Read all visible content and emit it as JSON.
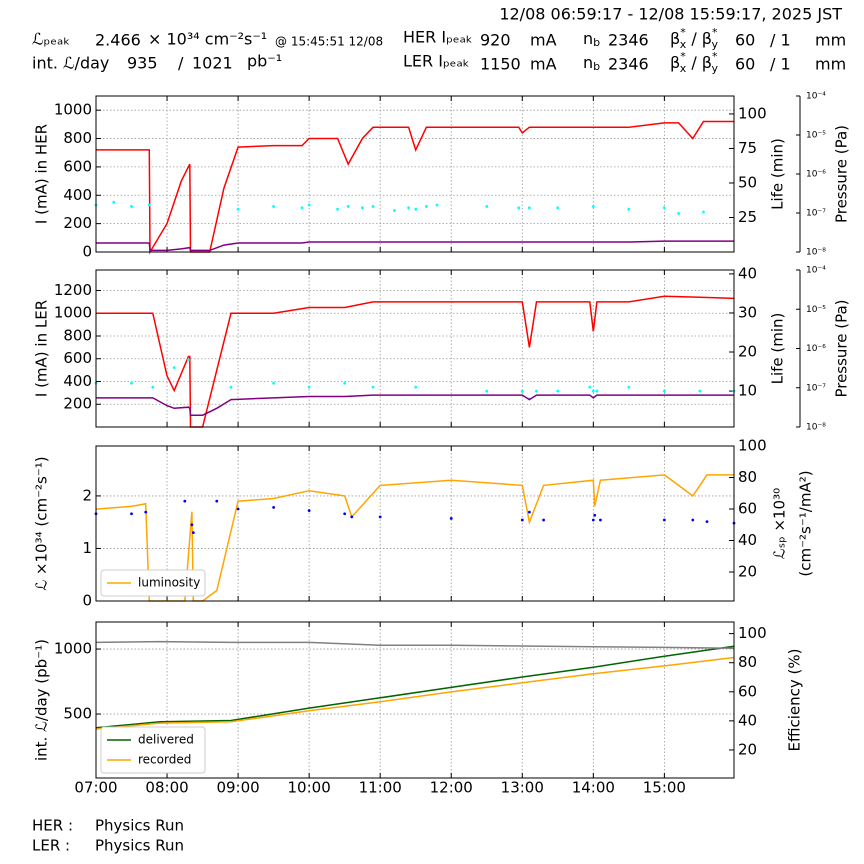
{
  "header": {
    "time_range": "12/08 06:59:17 - 12/08 15:59:17, 2025 JST",
    "lpeak_label": "ℒₚₑₐₖ",
    "lpeak_value": 2.466,
    "lpeak_unit": "× 10³⁴ cm⁻²s⁻¹",
    "lpeak_time": "@ 15:45:51 12/08",
    "int_label": "int. ℒ/day",
    "int_recorded": 935,
    "int_sep": "/",
    "int_delivered": 1021,
    "int_unit": "pb⁻¹",
    "nb": {
      "symbol": "n",
      "sub": "b"
    },
    "beta": {
      "symbol": "β",
      "sup": "*",
      "sub_x": "x",
      "sep": " / ",
      "sub_y": "y"
    },
    "her": {
      "label": "HER Iₚₑₐₖ",
      "current": 920,
      "unit": "mA",
      "nb_value": 2346,
      "beta_x": 60,
      "beta_y": "/ 1",
      "beta_unit": "mm"
    },
    "ler": {
      "label": "LER Iₚₑₐₖ",
      "current": 1150,
      "unit": "mA",
      "nb_value": 2346,
      "beta_x": 60,
      "beta_y": "/ 1",
      "beta_unit": "mm"
    }
  },
  "footer": [
    {
      "ring": "HER :",
      "status": "Physics Run"
    },
    {
      "ring": "LER :",
      "status": "Physics Run"
    }
  ],
  "chart_data": [
    {
      "type": "line",
      "grid": true,
      "x": [
        7.0,
        7.25,
        7.5,
        7.75,
        7.76,
        8.0,
        8.2,
        8.32,
        8.33,
        8.6,
        8.8,
        9.0,
        9.5,
        9.9,
        10.0,
        10.4,
        10.55,
        10.75,
        10.9,
        11.2,
        11.4,
        11.5,
        11.65,
        11.8,
        12.5,
        12.95,
        13.0,
        13.1,
        13.5,
        14.0,
        14.5,
        15.0,
        15.2,
        15.4,
        15.55,
        15.7,
        15.98
      ],
      "xlim": [
        7,
        15.98
      ],
      "xticks": [
        7,
        8,
        9,
        10,
        11,
        12,
        13,
        14,
        15
      ],
      "ylim": [
        0,
        1100
      ],
      "yticks": [
        0,
        200,
        400,
        600,
        800,
        1000
      ],
      "ylabel": "I (mA) in HER",
      "y2lim": [
        0,
        113
      ],
      "y2ticks": [
        25,
        50,
        75,
        100
      ],
      "y2label": "Life (min)",
      "y3lim": [
        1e-08,
        0.0001
      ],
      "y3scale": "log",
      "y3label": "Pressure (Pa)",
      "y3ticks": [
        {
          "value": 0.0001,
          "label": "10⁻⁴"
        },
        {
          "value": 1e-05,
          "label": "10⁻⁵"
        },
        {
          "value": 1e-06,
          "label": "10⁻⁶"
        },
        {
          "value": 1e-07,
          "label": "10⁻⁷"
        },
        {
          "value": 1e-08,
          "label": "10⁻⁸"
        }
      ],
      "series": [
        {
          "color": "#ff0000",
          "axis": "y",
          "mode": "line",
          "values": [
            720,
            720,
            720,
            720,
            0,
            200,
            500,
            620,
            0,
            0,
            450,
            740,
            750,
            750,
            800,
            800,
            620,
            800,
            880,
            880,
            880,
            720,
            880,
            880,
            880,
            880,
            840,
            880,
            880,
            880,
            880,
            910,
            910,
            800,
            920,
            920,
            920
          ]
        },
        {
          "color": "#00ffff",
          "axis": "y2",
          "mode": "markers",
          "values": [
            34,
            36,
            33,
            34,
            null,
            null,
            null,
            null,
            null,
            null,
            null,
            31,
            33,
            32,
            34,
            31,
            33,
            32,
            33,
            30,
            32,
            31,
            33,
            34,
            33,
            32,
            null,
            32,
            32,
            33,
            31,
            32,
            28,
            null,
            29,
            null,
            null
          ]
        },
        {
          "color": "#800080",
          "axis": "y3",
          "mode": "line",
          "values": [
            1.7e-08,
            1.7e-08,
            1.7e-08,
            1.7e-08,
            1.1e-08,
            1.1e-08,
            1.2e-08,
            1.3e-08,
            1.1e-08,
            1.1e-08,
            1.5e-08,
            1.7e-08,
            1.7e-08,
            1.7e-08,
            1.8e-08,
            1.8e-08,
            1.8e-08,
            1.8e-08,
            1.8e-08,
            1.8e-08,
            1.8e-08,
            1.8e-08,
            1.8e-08,
            1.8e-08,
            1.8e-08,
            1.8e-08,
            1.8e-08,
            1.8e-08,
            1.8e-08,
            1.8e-08,
            1.8e-08,
            1.9e-08,
            1.9e-08,
            1.9e-08,
            1.9e-08,
            1.9e-08,
            1.9e-08
          ]
        }
      ]
    },
    {
      "type": "line",
      "grid": true,
      "x": [
        7.0,
        7.5,
        7.8,
        8.0,
        8.1,
        8.3,
        8.32,
        8.33,
        8.5,
        8.7,
        8.9,
        9.5,
        10.0,
        10.5,
        10.9,
        11.5,
        12.5,
        13.0,
        13.1,
        13.2,
        13.5,
        13.95,
        14.0,
        14.05,
        14.5,
        15.0,
        15.5,
        15.98
      ],
      "xlim": [
        7,
        15.98
      ],
      "xticks": [
        7,
        8,
        9,
        10,
        11,
        12,
        13,
        14,
        15
      ],
      "ylim": [
        0,
        1380
      ],
      "yticks": [
        200,
        400,
        600,
        800,
        1000,
        1200
      ],
      "ylabel": "I (mA) in LER",
      "y2lim": [
        0.8,
        41
      ],
      "y2ticks": [
        10,
        20,
        30,
        40
      ],
      "y2label": "Life (min)",
      "y3lim": [
        1e-08,
        0.0001
      ],
      "y3scale": "log",
      "y3label": "Pressure (Pa)",
      "y3ticks": [
        {
          "value": 0.0001,
          "label": "10⁻⁴"
        },
        {
          "value": 1e-05,
          "label": "10⁻⁵"
        },
        {
          "value": 1e-06,
          "label": "10⁻⁶"
        },
        {
          "value": 1e-07,
          "label": "10⁻⁷"
        },
        {
          "value": 1e-08,
          "label": "10⁻⁸"
        }
      ],
      "series": [
        {
          "color": "#ff0000",
          "axis": "y",
          "mode": "line",
          "values": [
            1000,
            1000,
            1000,
            450,
            320,
            620,
            620,
            0,
            0,
            500,
            1000,
            1000,
            1050,
            1050,
            1100,
            1100,
            1100,
            1100,
            700,
            1100,
            1100,
            1100,
            840,
            1100,
            1100,
            1150,
            1140,
            1130
          ]
        },
        {
          "color": "#00ffff",
          "axis": "y2",
          "mode": "markers",
          "values": [
            12,
            12,
            11,
            null,
            16,
            18,
            null,
            null,
            null,
            null,
            11,
            12,
            11,
            12,
            11,
            11,
            10,
            10,
            8,
            10,
            10,
            11,
            10,
            10,
            11,
            10,
            10,
            10
          ]
        },
        {
          "color": "#800080",
          "axis": "y3",
          "mode": "line",
          "values": [
            5.5e-08,
            5.5e-08,
            5.5e-08,
            3.5e-08,
            3e-08,
            3.2e-08,
            3e-08,
            2e-08,
            2e-08,
            3e-08,
            5e-08,
            5.5e-08,
            6e-08,
            6e-08,
            6.5e-08,
            6.5e-08,
            6.5e-08,
            6.5e-08,
            5e-08,
            6.5e-08,
            6.5e-08,
            6.5e-08,
            5.5e-08,
            6.5e-08,
            6.5e-08,
            6.5e-08,
            6.5e-08,
            6.5e-08
          ]
        }
      ]
    },
    {
      "type": "line",
      "grid": true,
      "legend": "lower left",
      "x": [
        7.0,
        7.5,
        7.7,
        7.75,
        8.0,
        8.25,
        8.35,
        8.37,
        8.5,
        8.7,
        9.0,
        9.5,
        10.0,
        10.5,
        10.6,
        11.0,
        12.0,
        13.0,
        13.1,
        13.3,
        14.0,
        14.02,
        14.1,
        15.0,
        15.4,
        15.6,
        15.98
      ],
      "xlim": [
        7,
        15.98
      ],
      "xticks": [
        7,
        8,
        9,
        10,
        11,
        12,
        13,
        14,
        15
      ],
      "ylim": [
        0,
        2.95
      ],
      "yticks": [
        0,
        1,
        2
      ],
      "ylabel": "ℒ ×10³⁴ (cm⁻²s⁻¹)",
      "y2lim": [
        1.6,
        100
      ],
      "y2ticks": [
        20,
        40,
        60,
        80,
        100
      ],
      "y2label": [
        "ℒₛₚ ×10³⁰",
        "(cm⁻²s⁻¹/mA²)"
      ],
      "series": [
        {
          "name": "luminosity",
          "color": "#ffa500",
          "axis": "y",
          "mode": "line",
          "values": [
            1.75,
            1.8,
            1.85,
            0,
            0,
            0,
            1.7,
            0,
            0,
            0.2,
            1.9,
            1.95,
            2.1,
            2.0,
            1.6,
            2.2,
            2.3,
            2.2,
            1.5,
            2.2,
            2.3,
            1.8,
            2.3,
            2.4,
            2.0,
            2.4,
            2.4
          ]
        },
        {
          "color": "#0000ff",
          "axis": "y2",
          "mode": "markers",
          "values": [
            57,
            57,
            58,
            null,
            null,
            65,
            50,
            45,
            null,
            65,
            60,
            61,
            59,
            57,
            55,
            55,
            54,
            53,
            58,
            53,
            53,
            56,
            53,
            53,
            53,
            52,
            51
          ]
        }
      ]
    },
    {
      "type": "line",
      "grid": true,
      "legend": "lower left",
      "x": [
        7.0,
        7.9,
        8.9,
        10.0,
        11.0,
        12.0,
        13.0,
        14.0,
        15.0,
        15.98
      ],
      "xlim": [
        7,
        15.98
      ],
      "xticks": [
        {
          "value": 7,
          "label": "07:00"
        },
        {
          "value": 8,
          "label": "08:00"
        },
        {
          "value": 9,
          "label": "09:00"
        },
        {
          "value": 10,
          "label": "10:00"
        },
        {
          "value": 11,
          "label": "11:00"
        },
        {
          "value": 12,
          "label": "12:00"
        },
        {
          "value": 13,
          "label": "13:00"
        },
        {
          "value": 14,
          "label": "14:00"
        },
        {
          "value": 15,
          "label": "15:00"
        }
      ],
      "ylim": [
        8,
        1208
      ],
      "yticks": [
        500,
        1000
      ],
      "ylabel": "int. ℒ/day (pb⁻¹)",
      "y2lim": [
        0.7,
        108
      ],
      "y2ticks": [
        20,
        40,
        60,
        80,
        100
      ],
      "y2label": "Efficiency (%)",
      "series": [
        {
          "name": "delivered",
          "color": "#006400",
          "axis": "y",
          "mode": "line",
          "values": [
            395,
            440,
            450,
            546,
            625,
            705,
            785,
            860,
            945,
            1021
          ]
        },
        {
          "name": "recorded",
          "color": "#ffa500",
          "axis": "y",
          "mode": "line",
          "values": [
            385,
            430,
            440,
            525,
            595,
            670,
            740,
            810,
            870,
            935
          ]
        },
        {
          "color": "#808080",
          "axis": "y2",
          "mode": "line",
          "values": [
            94,
            94.5,
            94,
            94,
            92,
            92,
            91.5,
            91,
            90.5,
            90
          ]
        }
      ]
    }
  ]
}
